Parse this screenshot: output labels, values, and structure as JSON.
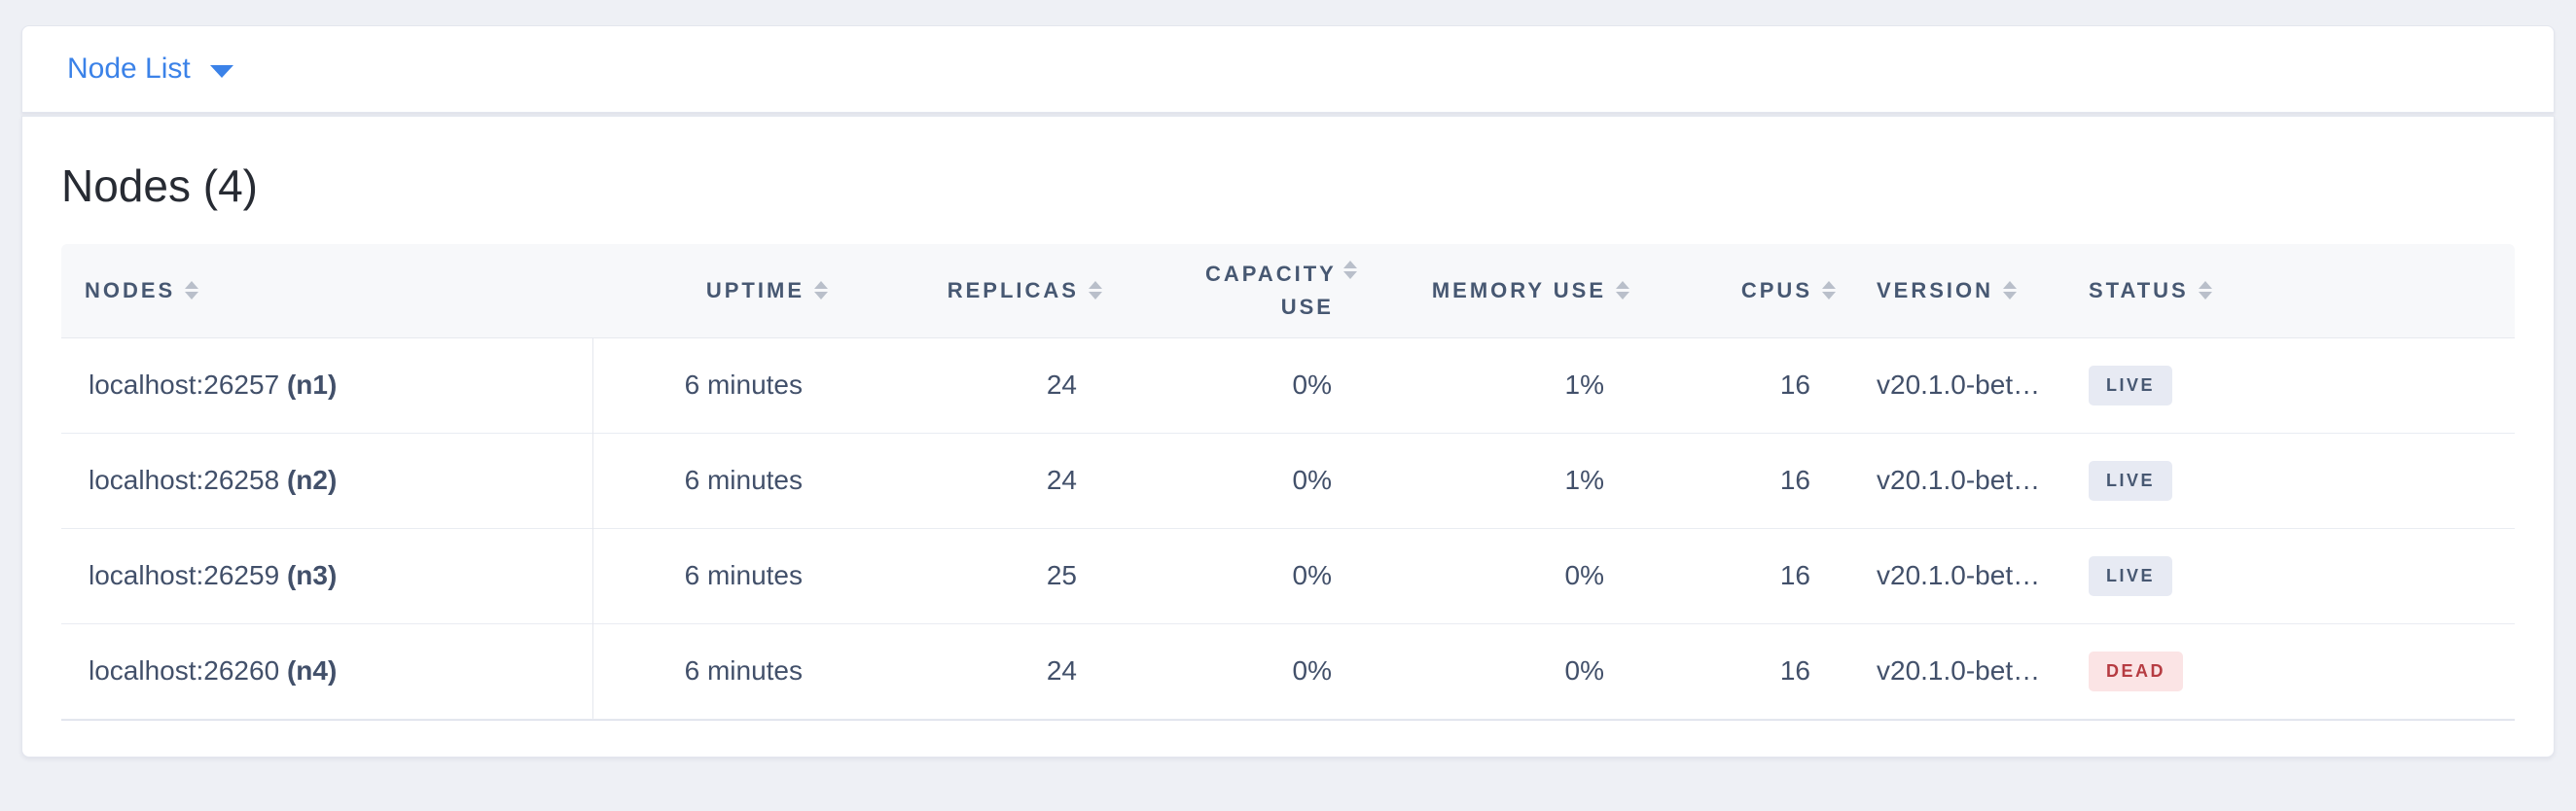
{
  "view_selector": {
    "label": "Node List"
  },
  "page": {
    "title": "Nodes (4)"
  },
  "theme": {
    "accent_blue": "#3b82e8",
    "header_text": "#475872",
    "live_badge_bg": "#e7eaf3",
    "live_badge_text": "#475872",
    "dead_badge_bg": "#fbe4e5",
    "dead_badge_text": "#b63c42"
  },
  "table": {
    "columns": [
      {
        "label": "NODES"
      },
      {
        "label": "UPTIME"
      },
      {
        "label": "REPLICAS"
      },
      {
        "label": "CAPACITY USE"
      },
      {
        "label": "MEMORY USE"
      },
      {
        "label": "CPUS"
      },
      {
        "label": "VERSION"
      },
      {
        "label": "STATUS"
      }
    ],
    "rows": [
      {
        "address": "localhost:26257",
        "id": "(n1)",
        "uptime": "6 minutes",
        "replicas": "24",
        "capacity_use": "0%",
        "memory_use": "1%",
        "cpus": "16",
        "version": "v20.1.0-bet…",
        "status": "LIVE"
      },
      {
        "address": "localhost:26258",
        "id": "(n2)",
        "uptime": "6 minutes",
        "replicas": "24",
        "capacity_use": "0%",
        "memory_use": "1%",
        "cpus": "16",
        "version": "v20.1.0-bet…",
        "status": "LIVE"
      },
      {
        "address": "localhost:26259",
        "id": "(n3)",
        "uptime": "6 minutes",
        "replicas": "25",
        "capacity_use": "0%",
        "memory_use": "0%",
        "cpus": "16",
        "version": "v20.1.0-bet…",
        "status": "LIVE"
      },
      {
        "address": "localhost:26260",
        "id": "(n4)",
        "uptime": "6 minutes",
        "replicas": "24",
        "capacity_use": "0%",
        "memory_use": "0%",
        "cpus": "16",
        "version": "v20.1.0-bet…",
        "status": "DEAD"
      }
    ]
  }
}
